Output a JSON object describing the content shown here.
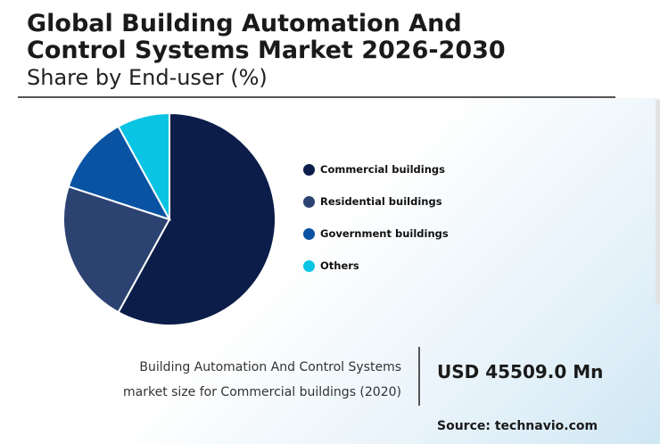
{
  "title_line1": "Global Building Automation And",
  "title_line2": "Control Systems Market 2026-2030",
  "subtitle": "Share by End-user (%)",
  "chart_data": {
    "type": "pie",
    "categories": [
      "Commercial buildings",
      "Residential buildings",
      "Government buildings",
      "Others"
    ],
    "values": [
      58,
      22,
      12,
      8
    ],
    "colors": [
      "#0b1d48",
      "#2c4372",
      "#0a53a3",
      "#09c4e3"
    ],
    "legend_position": "right",
    "slice_border": "#ffffff"
  },
  "kpi": {
    "label_line1": "Building Automation And Control Systems",
    "label_line2": "market size for Commercial buildings (2020)",
    "value": "USD 45509.0 Mn"
  },
  "source": "Source: technavio.com"
}
